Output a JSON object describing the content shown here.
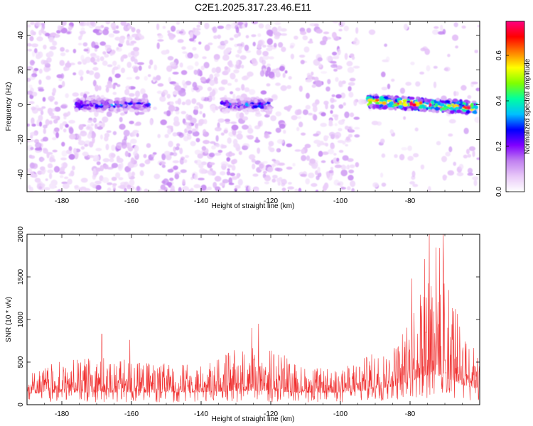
{
  "title": "C2E1.2025.317.23.46.E11",
  "chart_data": [
    {
      "type": "heatmap",
      "xlabel": "Height of straight line (km)",
      "ylabel": "Frequency (Hz)",
      "xlim": [
        -190,
        -60
      ],
      "ylim": [
        -50,
        48
      ],
      "x_ticks": [
        -180,
        -160,
        -140,
        -120,
        -100,
        -80
      ],
      "y_ticks": [
        -40,
        -20,
        0,
        20,
        40
      ],
      "colorbar": {
        "label": "Normalized spectral amplitude",
        "range": [
          0,
          0.75
        ],
        "ticks": [
          0.0,
          0.2,
          0.4,
          0.6
        ],
        "tick_labels": [
          "0.0",
          "0.2",
          "0.4",
          "0.6"
        ],
        "colors": [
          "#ffffff",
          "#e8c8f8",
          "#c080f0",
          "#8000ff",
          "#0000ff",
          "#00c0ff",
          "#00ffa0",
          "#80ff00",
          "#ffff00",
          "#ff8000",
          "#ff0000",
          "#ff0080"
        ]
      },
      "signal_band": {
        "center_hz": 0,
        "segments": [
          {
            "x_start": -176,
            "x_end": -155,
            "peak_amp": 0.3
          },
          {
            "x_start": -134,
            "x_end": -120,
            "peak_amp": 0.3
          },
          {
            "x_start": -92,
            "x_end": -61,
            "peak_amp": 0.7
          }
        ]
      },
      "sparse_regions": [
        [
          -158,
          -152
        ],
        [
          -116,
          -111
        ],
        [
          -95,
          -90
        ]
      ]
    },
    {
      "type": "line",
      "xlabel": "Height of straight line (km)",
      "ylabel": "SNR (10 * v/v)",
      "xlim": [
        -190,
        -60
      ],
      "ylim": [
        0,
        2000
      ],
      "x_ticks": [
        -180,
        -160,
        -140,
        -120,
        -100,
        -80
      ],
      "y_ticks": [
        0,
        500,
        1000,
        1500,
        2000
      ],
      "series": [
        {
          "name": "SNR",
          "color": "#f03030",
          "envelope": {
            "x": [
              -190,
              -180,
              -170,
              -160,
              -150,
              -140,
              -130,
              -120,
              -110,
              -100,
              -95,
              -90,
              -85,
              -82,
              -80,
              -78,
              -76,
              -74,
              -72,
              -70,
              -68,
              -66,
              -64,
              -62,
              -60
            ],
            "base": [
              130,
              140,
              145,
              140,
              140,
              145,
              160,
              155,
              140,
              140,
              150,
              180,
              210,
              240,
              280,
              300,
              330,
              330,
              340,
              310,
              290,
              250,
              220,
              200,
              190
            ],
            "peak": [
              380,
              520,
              560,
              520,
              480,
              470,
              650,
              700,
              440,
              420,
              520,
              620,
              700,
              900,
              1100,
              1400,
              1700,
              1900,
              2000,
              1800,
              1400,
              1000,
              800,
              700,
              600
            ]
          },
          "spikes": [
            {
              "x": -168.5,
              "y": 830
            },
            {
              "x": -160.5,
              "y": 760
            },
            {
              "x": -130.5,
              "y": 640
            },
            {
              "x": -125.5,
              "y": 900
            },
            {
              "x": -123.5,
              "y": 950
            },
            {
              "x": -79.5,
              "y": 1480
            },
            {
              "x": -74.5,
              "y": 2000
            },
            {
              "x": -70.5,
              "y": 2000
            }
          ]
        }
      ]
    }
  ]
}
